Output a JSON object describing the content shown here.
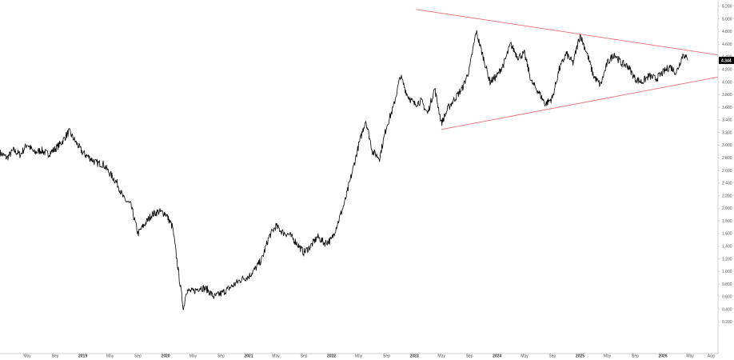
{
  "chart_data": {
    "type": "line",
    "style": "price-ohlc-bars",
    "title": "",
    "xlabel": "",
    "ylabel": "",
    "ylim": [
      -0.3,
      5.3
    ],
    "xlim": [
      "2018-01-01",
      "2026-09-01"
    ],
    "grid": false,
    "last_price": "4.344",
    "y_ticks": [
      "5.200",
      "5.000",
      "4.800",
      "4.600",
      "4.400",
      "4.200",
      "4.000",
      "3.800",
      "3.600",
      "3.400",
      "3.200",
      "3.000",
      "2.800",
      "2.600",
      "2.400",
      "2.200",
      "2.000",
      "1.800",
      "1.600",
      "1.400",
      "1.200",
      "1.000",
      "0.800",
      "0.600",
      "0.400",
      "0.200"
    ],
    "x_ticks": [
      {
        "label": "May",
        "date": "2018-05-01",
        "bold": false
      },
      {
        "label": "Sep",
        "date": "2018-09-01",
        "bold": false
      },
      {
        "label": "2019",
        "date": "2019-01-01",
        "bold": true
      },
      {
        "label": "May",
        "date": "2019-05-01",
        "bold": false
      },
      {
        "label": "Sep",
        "date": "2019-09-01",
        "bold": false
      },
      {
        "label": "2020",
        "date": "2020-01-01",
        "bold": true
      },
      {
        "label": "May",
        "date": "2020-05-01",
        "bold": false
      },
      {
        "label": "Sep",
        "date": "2020-09-01",
        "bold": false
      },
      {
        "label": "2021",
        "date": "2021-01-01",
        "bold": true
      },
      {
        "label": "May",
        "date": "2021-05-01",
        "bold": false
      },
      {
        "label": "Sep",
        "date": "2021-09-01",
        "bold": false
      },
      {
        "label": "2022",
        "date": "2022-01-01",
        "bold": true
      },
      {
        "label": "May",
        "date": "2022-05-01",
        "bold": false
      },
      {
        "label": "Sep",
        "date": "2022-09-01",
        "bold": false
      },
      {
        "label": "2023",
        "date": "2023-01-01",
        "bold": true
      },
      {
        "label": "May",
        "date": "2023-05-01",
        "bold": false
      },
      {
        "label": "Sep",
        "date": "2023-09-01",
        "bold": false
      },
      {
        "label": "2024",
        "date": "2024-01-01",
        "bold": true
      },
      {
        "label": "May",
        "date": "2024-05-01",
        "bold": false
      },
      {
        "label": "Sep",
        "date": "2024-09-01",
        "bold": false
      },
      {
        "label": "2025",
        "date": "2025-01-01",
        "bold": true
      },
      {
        "label": "May",
        "date": "2025-05-01",
        "bold": false
      },
      {
        "label": "Sep",
        "date": "2025-09-01",
        "bold": false
      },
      {
        "label": "2026",
        "date": "2026-01-01",
        "bold": true
      },
      {
        "label": "May",
        "date": "2026-05-01",
        "bold": false
      },
      {
        "label": "Aug",
        "date": "2026-08-01",
        "bold": false
      }
    ],
    "series": [
      {
        "color": "#000000",
        "points": [
          [
            "2018-01-01",
            2.88
          ],
          [
            "2018-02-01",
            2.8
          ],
          [
            "2018-03-01",
            2.92
          ],
          [
            "2018-04-01",
            2.85
          ],
          [
            "2018-05-01",
            3.02
          ],
          [
            "2018-06-01",
            2.88
          ],
          [
            "2018-07-01",
            2.92
          ],
          [
            "2018-08-01",
            2.86
          ],
          [
            "2018-09-01",
            2.94
          ],
          [
            "2018-10-01",
            3.05
          ],
          [
            "2018-11-01",
            3.22
          ],
          [
            "2018-12-01",
            3.05
          ],
          [
            "2019-01-01",
            2.88
          ],
          [
            "2019-02-01",
            2.8
          ],
          [
            "2019-03-01",
            2.72
          ],
          [
            "2019-04-01",
            2.7
          ],
          [
            "2019-05-01",
            2.55
          ],
          [
            "2019-06-01",
            2.4
          ],
          [
            "2019-07-01",
            2.15
          ],
          [
            "2019-08-01",
            2.05
          ],
          [
            "2019-09-01",
            1.6
          ],
          [
            "2019-10-01",
            1.75
          ],
          [
            "2019-11-01",
            1.9
          ],
          [
            "2019-12-01",
            1.95
          ],
          [
            "2020-01-01",
            1.92
          ],
          [
            "2020-02-01",
            1.7
          ],
          [
            "2020-03-01",
            0.9
          ],
          [
            "2020-03-20",
            0.4
          ],
          [
            "2020-04-01",
            0.7
          ],
          [
            "2020-05-01",
            0.68
          ],
          [
            "2020-06-01",
            0.75
          ],
          [
            "2020-07-01",
            0.72
          ],
          [
            "2020-08-01",
            0.6
          ],
          [
            "2020-09-01",
            0.65
          ],
          [
            "2020-10-01",
            0.72
          ],
          [
            "2020-11-01",
            0.8
          ],
          [
            "2020-12-01",
            0.88
          ],
          [
            "2021-01-01",
            0.92
          ],
          [
            "2021-02-01",
            1.05
          ],
          [
            "2021-03-01",
            1.2
          ],
          [
            "2021-04-01",
            1.55
          ],
          [
            "2021-05-01",
            1.72
          ],
          [
            "2021-06-01",
            1.62
          ],
          [
            "2021-07-01",
            1.58
          ],
          [
            "2021-08-01",
            1.45
          ],
          [
            "2021-09-01",
            1.3
          ],
          [
            "2021-10-01",
            1.4
          ],
          [
            "2021-11-01",
            1.55
          ],
          [
            "2021-12-01",
            1.45
          ],
          [
            "2022-01-01",
            1.5
          ],
          [
            "2022-02-01",
            1.8
          ],
          [
            "2022-03-01",
            2.1
          ],
          [
            "2022-04-01",
            2.55
          ],
          [
            "2022-05-01",
            3.0
          ],
          [
            "2022-06-01",
            3.4
          ],
          [
            "2022-07-01",
            2.9
          ],
          [
            "2022-08-01",
            2.8
          ],
          [
            "2022-09-01",
            3.3
          ],
          [
            "2022-10-01",
            3.6
          ],
          [
            "2022-11-01",
            4.1
          ],
          [
            "2022-12-01",
            3.8
          ],
          [
            "2023-01-01",
            3.65
          ],
          [
            "2023-02-01",
            3.7
          ],
          [
            "2023-03-01",
            3.5
          ],
          [
            "2023-04-01",
            3.9
          ],
          [
            "2023-05-01",
            3.35
          ],
          [
            "2023-06-01",
            3.6
          ],
          [
            "2023-07-01",
            3.75
          ],
          [
            "2023-08-01",
            3.9
          ],
          [
            "2023-09-01",
            4.2
          ],
          [
            "2023-10-01",
            4.8
          ],
          [
            "2023-11-01",
            4.4
          ],
          [
            "2023-12-01",
            4.0
          ],
          [
            "2024-01-01",
            4.1
          ],
          [
            "2024-02-01",
            4.3
          ],
          [
            "2024-03-01",
            4.6
          ],
          [
            "2024-04-01",
            4.4
          ],
          [
            "2024-05-01",
            4.45
          ],
          [
            "2024-06-01",
            4.0
          ],
          [
            "2024-07-01",
            3.85
          ],
          [
            "2024-08-01",
            3.65
          ],
          [
            "2024-09-01",
            3.75
          ],
          [
            "2024-10-01",
            4.2
          ],
          [
            "2024-11-01",
            4.45
          ],
          [
            "2024-12-01",
            4.3
          ],
          [
            "2025-01-01",
            4.75
          ],
          [
            "2025-02-01",
            4.45
          ],
          [
            "2025-03-01",
            4.1
          ],
          [
            "2025-04-01",
            3.95
          ],
          [
            "2025-05-01",
            4.3
          ],
          [
            "2025-06-01",
            4.45
          ],
          [
            "2025-07-01",
            4.3
          ],
          [
            "2025-08-01",
            4.25
          ],
          [
            "2025-09-01",
            4.05
          ],
          [
            "2025-10-01",
            4.0
          ],
          [
            "2025-11-01",
            4.1
          ],
          [
            "2025-12-01",
            4.05
          ],
          [
            "2026-01-01",
            4.15
          ],
          [
            "2026-02-01",
            4.25
          ],
          [
            "2026-03-01",
            4.15
          ],
          [
            "2026-04-01",
            4.45
          ],
          [
            "2026-04-20",
            4.344
          ]
        ]
      }
    ],
    "trendlines": [
      {
        "color": "#f26b6b",
        "from": [
          "2023-01-10",
          5.15
        ],
        "to": [
          "2026-09-01",
          4.43
        ]
      },
      {
        "color": "#f26b6b",
        "from": [
          "2023-05-01",
          3.25
        ],
        "to": [
          "2026-09-01",
          4.08
        ]
      }
    ]
  }
}
